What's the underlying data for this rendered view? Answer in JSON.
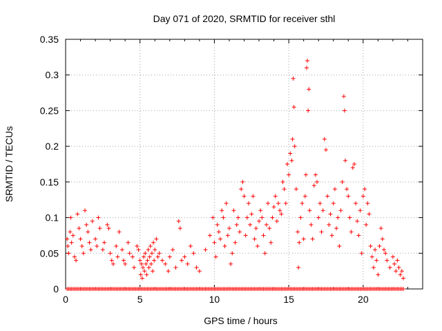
{
  "chart_data": {
    "type": "scatter",
    "title": "Day 071 of 2020, SRMTID for receiver sthl",
    "xlabel": "GPS time / hours",
    "ylabel": "SRMTID / TECUs",
    "xlim": [
      0,
      24
    ],
    "ylim": [
      0,
      0.35
    ],
    "x_ticks": [
      0,
      5,
      10,
      15,
      20
    ],
    "y_ticks": [
      0,
      0.05,
      0.1,
      0.15,
      0.2,
      0.25,
      0.3,
      0.35
    ],
    "x_tick_labels": [
      "0",
      "5",
      "10",
      "15",
      "20"
    ],
    "y_tick_labels": [
      "0",
      "0.05",
      "0.1",
      "0.15",
      "0.2",
      "0.25",
      "0.3",
      "0.35"
    ],
    "grid": true,
    "marker": "+",
    "color": "#ff0000",
    "series": [
      {
        "name": "SRMTID",
        "points": [
          [
            0.1,
            0.07
          ],
          [
            0.15,
            0.06
          ],
          [
            0.2,
            0.05
          ],
          [
            0.3,
            0.08
          ],
          [
            0.35,
            0.1
          ],
          [
            0.4,
            0.065
          ],
          [
            0.5,
            0.075
          ],
          [
            0.6,
            0.045
          ],
          [
            0.7,
            0.04
          ],
          [
            0.8,
            0.105
          ],
          [
            0.9,
            0.085
          ],
          [
            1.0,
            0.07
          ],
          [
            1.1,
            0.06
          ],
          [
            1.2,
            0.05
          ],
          [
            1.3,
            0.11
          ],
          [
            1.4,
            0.09
          ],
          [
            1.5,
            0.08
          ],
          [
            1.6,
            0.065
          ],
          [
            1.7,
            0.055
          ],
          [
            1.8,
            0.095
          ],
          [
            2.0,
            0.07
          ],
          [
            2.1,
            0.06
          ],
          [
            2.2,
            0.1
          ],
          [
            2.3,
            0.085
          ],
          [
            2.5,
            0.055
          ],
          [
            2.6,
            0.065
          ],
          [
            2.8,
            0.09
          ],
          [
            2.9,
            0.085
          ],
          [
            3.0,
            0.05
          ],
          [
            3.1,
            0.04
          ],
          [
            3.2,
            0.035
          ],
          [
            3.4,
            0.06
          ],
          [
            3.5,
            0.045
          ],
          [
            3.6,
            0.08
          ],
          [
            3.8,
            0.055
          ],
          [
            3.9,
            0.04
          ],
          [
            4.0,
            0.035
          ],
          [
            4.2,
            0.065
          ],
          [
            4.3,
            0.05
          ],
          [
            4.5,
            0.045
          ],
          [
            4.6,
            0.03
          ],
          [
            4.8,
            0.06
          ],
          [
            4.9,
            0.055
          ],
          [
            5.0,
            0.04
          ],
          [
            5.05,
            0.02
          ],
          [
            5.1,
            0.035
          ],
          [
            5.15,
            0.015
          ],
          [
            5.2,
            0.03
          ],
          [
            5.25,
            0.045
          ],
          [
            5.3,
            0.025
          ],
          [
            5.35,
            0.05
          ],
          [
            5.4,
            0.035
          ],
          [
            5.45,
            0.02
          ],
          [
            5.5,
            0.04
          ],
          [
            5.55,
            0.055
          ],
          [
            5.6,
            0.03
          ],
          [
            5.65,
            0.045
          ],
          [
            5.7,
            0.06
          ],
          [
            5.75,
            0.035
          ],
          [
            5.8,
            0.05
          ],
          [
            5.85,
            0.025
          ],
          [
            5.9,
            0.065
          ],
          [
            5.95,
            0.04
          ],
          [
            6.0,
            0.055
          ],
          [
            6.1,
            0.07
          ],
          [
            6.2,
            0.045
          ],
          [
            6.3,
            0.05
          ],
          [
            6.5,
            0.04
          ],
          [
            6.7,
            0.035
          ],
          [
            6.9,
            0.025
          ],
          [
            7.0,
            0.045
          ],
          [
            7.2,
            0.055
          ],
          [
            7.4,
            0.03
          ],
          [
            7.6,
            0.095
          ],
          [
            7.7,
            0.085
          ],
          [
            7.8,
            0.04
          ],
          [
            8.0,
            0.045
          ],
          [
            8.2,
            0.035
          ],
          [
            8.4,
            0.06
          ],
          [
            8.6,
            0.05
          ],
          [
            8.8,
            0.03
          ],
          [
            9.0,
            0.025
          ],
          [
            9.4,
            0.055
          ],
          [
            9.7,
            0.075
          ],
          [
            9.9,
            0.1
          ],
          [
            10.0,
            0.065
          ],
          [
            10.1,
            0.045
          ],
          [
            10.2,
            0.09
          ],
          [
            10.3,
            0.08
          ],
          [
            10.4,
            0.07
          ],
          [
            10.5,
            0.11
          ],
          [
            10.6,
            0.1
          ],
          [
            10.7,
            0.06
          ],
          [
            10.8,
            0.12
          ],
          [
            10.9,
            0.075
          ],
          [
            11.0,
            0.085
          ],
          [
            11.1,
            0.035
          ],
          [
            11.2,
            0.05
          ],
          [
            11.3,
            0.11
          ],
          [
            11.4,
            0.065
          ],
          [
            11.5,
            0.09
          ],
          [
            11.6,
            0.1
          ],
          [
            11.7,
            0.08
          ],
          [
            11.8,
            0.14
          ],
          [
            11.9,
            0.15
          ],
          [
            12.0,
            0.13
          ],
          [
            12.1,
            0.075
          ],
          [
            12.2,
            0.1
          ],
          [
            12.3,
            0.12
          ],
          [
            12.4,
            0.09
          ],
          [
            12.5,
            0.105
          ],
          [
            12.6,
            0.13
          ],
          [
            12.7,
            0.07
          ],
          [
            12.8,
            0.085
          ],
          [
            12.9,
            0.06
          ],
          [
            13.0,
            0.095
          ],
          [
            13.1,
            0.11
          ],
          [
            13.2,
            0.1
          ],
          [
            13.3,
            0.075
          ],
          [
            13.4,
            0.05
          ],
          [
            13.5,
            0.09
          ],
          [
            13.6,
            0.12
          ],
          [
            13.7,
            0.085
          ],
          [
            13.8,
            0.065
          ],
          [
            13.9,
            0.1
          ],
          [
            14.0,
            0.115
          ],
          [
            14.1,
            0.13
          ],
          [
            14.2,
            0.095
          ],
          [
            14.3,
            0.12
          ],
          [
            14.4,
            0.11
          ],
          [
            14.5,
            0.105
          ],
          [
            14.6,
            0.15
          ],
          [
            14.7,
            0.14
          ],
          [
            14.8,
            0.12
          ],
          [
            14.9,
            0.175
          ],
          [
            15.0,
            0.16
          ],
          [
            15.1,
            0.19
          ],
          [
            15.2,
            0.18
          ],
          [
            15.25,
            0.21
          ],
          [
            15.3,
            0.295
          ],
          [
            15.35,
            0.255
          ],
          [
            15.4,
            0.2
          ],
          [
            15.5,
            0.14
          ],
          [
            15.6,
            0.08
          ],
          [
            15.65,
            0.03
          ],
          [
            15.7,
            0.065
          ],
          [
            15.8,
            0.1
          ],
          [
            15.9,
            0.12
          ],
          [
            16.0,
            0.07
          ],
          [
            16.1,
            0.13
          ],
          [
            16.15,
            0.16
          ],
          [
            16.2,
            0.31
          ],
          [
            16.25,
            0.32
          ],
          [
            16.3,
            0.25
          ],
          [
            16.35,
            0.28
          ],
          [
            16.4,
            0.11
          ],
          [
            16.5,
            0.09
          ],
          [
            16.6,
            0.07
          ],
          [
            16.7,
            0.145
          ],
          [
            16.8,
            0.16
          ],
          [
            16.9,
            0.15
          ],
          [
            17.0,
            0.1
          ],
          [
            17.1,
            0.12
          ],
          [
            17.2,
            0.08
          ],
          [
            17.3,
            0.11
          ],
          [
            17.4,
            0.21
          ],
          [
            17.5,
            0.195
          ],
          [
            17.6,
            0.13
          ],
          [
            17.7,
            0.09
          ],
          [
            17.8,
            0.105
          ],
          [
            17.9,
            0.075
          ],
          [
            18.0,
            0.12
          ],
          [
            18.1,
            0.14
          ],
          [
            18.2,
            0.085
          ],
          [
            18.3,
            0.1
          ],
          [
            18.4,
            0.06
          ],
          [
            18.5,
            0.11
          ],
          [
            18.6,
            0.15
          ],
          [
            18.7,
            0.27
          ],
          [
            18.75,
            0.25
          ],
          [
            18.8,
            0.18
          ],
          [
            18.9,
            0.14
          ],
          [
            19.0,
            0.13
          ],
          [
            19.1,
            0.1
          ],
          [
            19.2,
            0.08
          ],
          [
            19.3,
            0.17
          ],
          [
            19.4,
            0.175
          ],
          [
            19.5,
            0.12
          ],
          [
            19.6,
            0.095
          ],
          [
            19.7,
            0.075
          ],
          [
            19.8,
            0.11
          ],
          [
            19.9,
            0.05
          ],
          [
            20.0,
            0.13
          ],
          [
            20.1,
            0.14
          ],
          [
            20.2,
            0.09
          ],
          [
            20.3,
            0.12
          ],
          [
            20.4,
            0.105
          ],
          [
            20.5,
            0.06
          ],
          [
            20.6,
            0.045
          ],
          [
            20.7,
            0.03
          ],
          [
            20.8,
            0.055
          ],
          [
            20.9,
            0.04
          ],
          [
            21.0,
            0.02
          ],
          [
            21.1,
            0.06
          ],
          [
            21.2,
            0.085
          ],
          [
            21.3,
            0.07
          ],
          [
            21.4,
            0.055
          ],
          [
            21.5,
            0.05
          ],
          [
            21.6,
            0.04
          ],
          [
            21.8,
            0.03
          ],
          [
            22.0,
            0.045
          ],
          [
            22.1,
            0.035
          ],
          [
            22.2,
            0.025
          ],
          [
            22.3,
            0.04
          ],
          [
            22.4,
            0.03
          ],
          [
            22.5,
            0.02
          ],
          [
            22.6,
            0.025
          ],
          [
            22.7,
            0.015
          ]
        ]
      },
      {
        "name": "zero-baseline",
        "x_start": 0.1,
        "x_end": 22.7,
        "x_step": 0.1,
        "y": 0
      }
    ]
  }
}
